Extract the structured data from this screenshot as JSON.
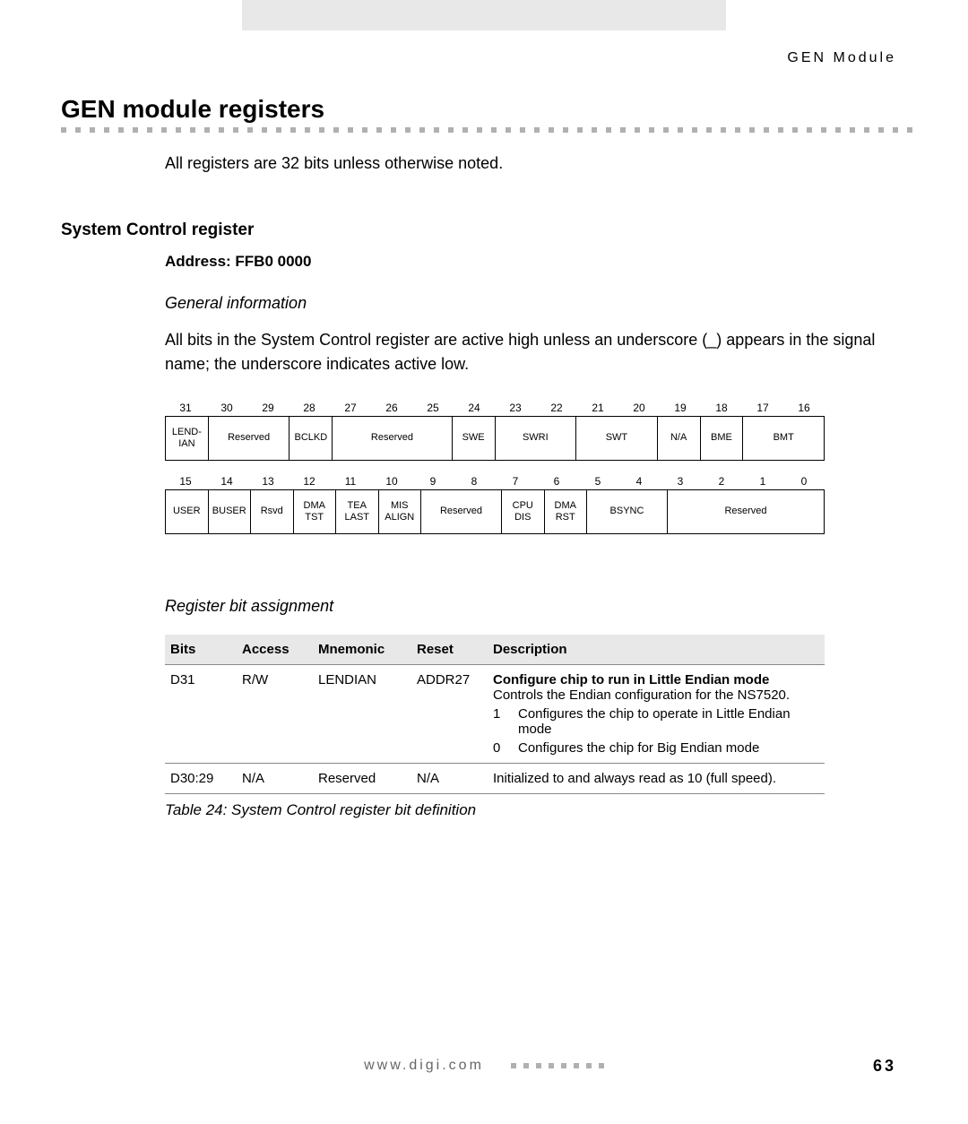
{
  "header": {
    "label": "GEN Module"
  },
  "main_heading": "GEN module registers",
  "intro": "All registers are 32 bits unless otherwise noted.",
  "section": {
    "heading": "System Control register",
    "address_label": "Address: FFB0 0000",
    "general_info_heading": "General information",
    "body": "All bits in the System Control register are active high unless an underscore (_) appears in the signal name; the underscore indicates active low."
  },
  "register_diagram": {
    "rows": [
      {
        "bitnums": [
          "31",
          "30",
          "29",
          "28",
          "27",
          "26",
          "25",
          "24",
          "23",
          "22",
          "21",
          "20",
          "19",
          "18",
          "17",
          "16"
        ],
        "cells": [
          {
            "label": "LEND-\nIAN",
            "span": 1
          },
          {
            "label": "Reserved",
            "span": 2
          },
          {
            "label": "BCLKD",
            "span": 1
          },
          {
            "label": "Reserved",
            "span": 3
          },
          {
            "label": "SWE",
            "span": 1
          },
          {
            "label": "SWRI",
            "span": 2
          },
          {
            "label": "SWT",
            "span": 2
          },
          {
            "label": "N/A",
            "span": 1
          },
          {
            "label": "BME",
            "span": 1
          },
          {
            "label": "BMT",
            "span": 2
          }
        ]
      },
      {
        "bitnums": [
          "15",
          "14",
          "13",
          "12",
          "11",
          "10",
          "9",
          "8",
          "7",
          "6",
          "5",
          "4",
          "3",
          "2",
          "1",
          "0"
        ],
        "cells": [
          {
            "label": "USER",
            "span": 1
          },
          {
            "label": "BUSER",
            "span": 1
          },
          {
            "label": "Rsvd",
            "span": 1
          },
          {
            "label": "DMA\nTST",
            "span": 1
          },
          {
            "label": "TEA\nLAST",
            "span": 1
          },
          {
            "label": "MIS\nALIGN",
            "span": 1
          },
          {
            "label": "Reserved",
            "span": 2
          },
          {
            "label": "CPU\nDIS",
            "span": 1
          },
          {
            "label": "DMA\nRST",
            "span": 1
          },
          {
            "label": "BSYNC",
            "span": 2
          },
          {
            "label": "Reserved",
            "span": 4
          }
        ]
      }
    ]
  },
  "bit_assignment_heading": "Register bit assignment",
  "bit_table": {
    "headers": [
      "Bits",
      "Access",
      "Mnemonic",
      "Reset",
      "Description"
    ],
    "col_widths": [
      "80px",
      "85px",
      "110px",
      "85px",
      "auto"
    ],
    "rows": [
      {
        "bits": "D31",
        "access": "R/W",
        "mnemonic": "LENDIAN",
        "reset": "ADDR27",
        "desc_title": "Configure chip to run in Little Endian mode",
        "desc_body": "Controls the Endian configuration for the NS7520.",
        "list": [
          {
            "num": "1",
            "text": "Configures the chip to operate in Little Endian mode"
          },
          {
            "num": "0",
            "text": "Configures the chip for Big Endian mode"
          }
        ]
      },
      {
        "bits": "D30:29",
        "access": "N/A",
        "mnemonic": "Reserved",
        "reset": "N/A",
        "desc_body": "Initialized to and always read as 10 (full speed)."
      }
    ]
  },
  "table_caption": "Table 24: System Control register bit definition",
  "footer": {
    "url": "www.digi.com",
    "page": "63"
  },
  "colors": {
    "gray_bg": "#e8e8e8",
    "dot": "#b0b0b0",
    "text": "#000000"
  }
}
